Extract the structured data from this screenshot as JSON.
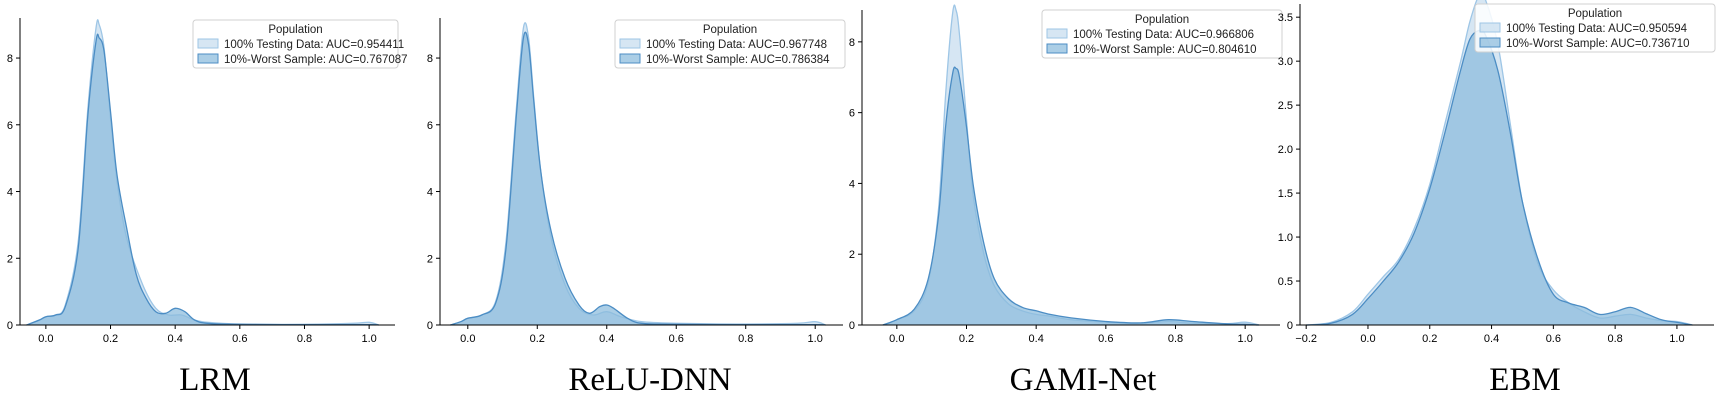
{
  "chart_data": [
    {
      "type": "area",
      "model_label": "LRM",
      "xlim": [
        -0.08,
        1.08
      ],
      "ylim": [
        0,
        9.2
      ],
      "xticks": [
        0.0,
        0.2,
        0.4,
        0.6,
        0.8,
        1.0
      ],
      "xtick_labels": [
        "0.0",
        "0.2",
        "0.4",
        "0.6",
        "0.8",
        "1.0"
      ],
      "yticks": [
        0,
        2,
        4,
        6,
        8
      ],
      "ytick_labels": [
        "0",
        "2",
        "4",
        "6",
        "8"
      ],
      "legend": {
        "title": "Population",
        "placement": "top-right"
      },
      "series": [
        {
          "name": "100% Testing Data: AUC=0.954411",
          "x": [
            -0.06,
            -0.02,
            0.0,
            0.03,
            0.06,
            0.1,
            0.13,
            0.155,
            0.165,
            0.18,
            0.2,
            0.22,
            0.25,
            0.3,
            0.34,
            0.38,
            0.42,
            0.46,
            0.5,
            0.6,
            0.8,
            0.95,
            1.0,
            1.03
          ],
          "y": [
            0,
            0.15,
            0.25,
            0.3,
            0.6,
            2.5,
            6.5,
            8.9,
            9.0,
            8.3,
            6.2,
            4.3,
            2.6,
            1.2,
            0.5,
            0.3,
            0.3,
            0.15,
            0.08,
            0.03,
            0.02,
            0.05,
            0.08,
            0
          ]
        },
        {
          "name": "10%-Worst Sample: AUC=0.767087",
          "x": [
            -0.06,
            -0.02,
            0.0,
            0.03,
            0.06,
            0.1,
            0.13,
            0.155,
            0.165,
            0.18,
            0.2,
            0.22,
            0.25,
            0.28,
            0.31,
            0.34,
            0.37,
            0.4,
            0.43,
            0.46,
            0.5,
            0.6,
            0.8,
            1.0,
            1.03
          ],
          "y": [
            0,
            0.15,
            0.25,
            0.3,
            0.55,
            2.3,
            6.3,
            8.5,
            8.6,
            8.2,
            6.4,
            4.5,
            2.9,
            1.5,
            0.8,
            0.4,
            0.35,
            0.5,
            0.4,
            0.15,
            0.05,
            0.02,
            0.01,
            0.01,
            0
          ]
        }
      ]
    },
    {
      "type": "area",
      "model_label": "ReLU-DNN",
      "xlim": [
        -0.08,
        1.08
      ],
      "ylim": [
        0,
        9.2
      ],
      "xticks": [
        0.0,
        0.2,
        0.4,
        0.6,
        0.8,
        1.0
      ],
      "xtick_labels": [
        "0.0",
        "0.2",
        "0.4",
        "0.6",
        "0.8",
        "1.0"
      ],
      "yticks": [
        0,
        2,
        4,
        6,
        8
      ],
      "ytick_labels": [
        "0",
        "2",
        "4",
        "6",
        "8"
      ],
      "legend": {
        "title": "Population",
        "placement": "top-right"
      },
      "series": [
        {
          "name": "100% Testing Data: AUC=0.967748",
          "x": [
            -0.05,
            -0.02,
            0.0,
            0.04,
            0.08,
            0.11,
            0.14,
            0.16,
            0.175,
            0.19,
            0.21,
            0.24,
            0.28,
            0.32,
            0.36,
            0.4,
            0.44,
            0.5,
            0.6,
            0.8,
            0.95,
            1.0,
            1.03
          ],
          "y": [
            0,
            0.1,
            0.2,
            0.3,
            0.7,
            2.5,
            6.5,
            8.9,
            8.6,
            6.8,
            4.6,
            2.6,
            1.2,
            0.5,
            0.3,
            0.4,
            0.25,
            0.1,
            0.05,
            0.03,
            0.05,
            0.1,
            0
          ]
        },
        {
          "name": "10%-Worst Sample: AUC=0.786384",
          "x": [
            -0.05,
            -0.02,
            0.0,
            0.04,
            0.08,
            0.11,
            0.14,
            0.16,
            0.175,
            0.19,
            0.21,
            0.24,
            0.28,
            0.32,
            0.35,
            0.38,
            0.4,
            0.42,
            0.46,
            0.5,
            0.6,
            0.8,
            1.0,
            1.03
          ],
          "y": [
            0,
            0.1,
            0.2,
            0.3,
            0.65,
            2.3,
            6.3,
            8.6,
            8.4,
            6.7,
            4.6,
            2.8,
            1.4,
            0.6,
            0.35,
            0.55,
            0.6,
            0.5,
            0.2,
            0.05,
            0.02,
            0.01,
            0.01,
            0
          ]
        }
      ]
    },
    {
      "type": "area",
      "model_label": "GAMI-Net",
      "xlim": [
        -0.1,
        1.1
      ],
      "ylim": [
        0,
        8.9
      ],
      "xticks": [
        0.0,
        0.2,
        0.4,
        0.6,
        0.8,
        1.0
      ],
      "xtick_labels": [
        "0.0",
        "0.2",
        "0.4",
        "0.6",
        "0.8",
        "1.0"
      ],
      "yticks": [
        0,
        2,
        4,
        6,
        8
      ],
      "ytick_labels": [
        "0",
        "2",
        "4",
        "6",
        "8"
      ],
      "legend": {
        "title": "Population",
        "placement": "top-right"
      },
      "series": [
        {
          "name": "100% Testing Data: AUC=0.966806",
          "x": [
            -0.04,
            0.0,
            0.05,
            0.09,
            0.12,
            0.14,
            0.16,
            0.17,
            0.18,
            0.2,
            0.22,
            0.25,
            0.28,
            0.32,
            0.36,
            0.4,
            0.44,
            0.5,
            0.6,
            0.7,
            0.78,
            0.85,
            0.95,
            1.0,
            1.04
          ],
          "y": [
            0,
            0.15,
            0.4,
            1.2,
            3.3,
            6.5,
            8.8,
            8.9,
            8.2,
            5.8,
            3.6,
            2.0,
            1.1,
            0.6,
            0.4,
            0.3,
            0.25,
            0.15,
            0.08,
            0.05,
            0.1,
            0.05,
            0.04,
            0.08,
            0
          ]
        },
        {
          "name": "10%-Worst Sample: AUC=0.804610",
          "x": [
            -0.04,
            0.0,
            0.05,
            0.09,
            0.12,
            0.14,
            0.16,
            0.17,
            0.18,
            0.2,
            0.22,
            0.25,
            0.28,
            0.32,
            0.36,
            0.4,
            0.44,
            0.5,
            0.6,
            0.7,
            0.78,
            0.85,
            0.95,
            1.0,
            1.04
          ],
          "y": [
            0,
            0.15,
            0.45,
            1.3,
            3.1,
            5.6,
            7.1,
            7.25,
            7.0,
            5.6,
            3.9,
            2.3,
            1.3,
            0.75,
            0.5,
            0.4,
            0.3,
            0.2,
            0.1,
            0.06,
            0.15,
            0.1,
            0.03,
            0.02,
            0
          ]
        }
      ]
    },
    {
      "type": "area",
      "model_label": "EBM",
      "xlim": [
        -0.22,
        1.12
      ],
      "ylim": [
        0,
        3.65
      ],
      "xticks": [
        -0.2,
        0.0,
        0.2,
        0.4,
        0.6,
        0.8,
        1.0
      ],
      "xtick_labels": [
        "−0.2",
        "0.0",
        "0.2",
        "0.4",
        "0.6",
        "0.8",
        "1.0"
      ],
      "yticks": [
        0,
        0.5,
        1.0,
        1.5,
        2.0,
        2.5,
        3.0,
        3.5
      ],
      "ytick_labels": [
        "0",
        "0.5",
        "1.0",
        "1.5",
        "2.0",
        "2.5",
        "3.0",
        "3.5"
      ],
      "legend": {
        "title": "Population",
        "placement": "top-right"
      },
      "series": [
        {
          "name": "100% Testing Data: AUC=0.950594",
          "x": [
            -0.2,
            -0.12,
            -0.05,
            0.0,
            0.05,
            0.1,
            0.15,
            0.2,
            0.25,
            0.3,
            0.33,
            0.36,
            0.38,
            0.42,
            0.46,
            0.5,
            0.55,
            0.6,
            0.65,
            0.7,
            0.75,
            0.8,
            0.85,
            0.9,
            0.95,
            1.0,
            1.05
          ],
          "y": [
            0,
            0.03,
            0.15,
            0.35,
            0.55,
            0.75,
            1.1,
            1.6,
            2.3,
            3.0,
            3.45,
            3.75,
            3.7,
            3.2,
            2.3,
            1.4,
            0.7,
            0.4,
            0.25,
            0.15,
            0.08,
            0.1,
            0.12,
            0.08,
            0.05,
            0.04,
            0
          ]
        },
        {
          "name": "10%-Worst Sample: AUC=0.736710",
          "x": [
            -0.2,
            -0.12,
            -0.05,
            0.0,
            0.05,
            0.1,
            0.15,
            0.2,
            0.25,
            0.3,
            0.33,
            0.36,
            0.38,
            0.42,
            0.46,
            0.5,
            0.55,
            0.6,
            0.65,
            0.7,
            0.75,
            0.8,
            0.85,
            0.9,
            0.95,
            1.0,
            1.05
          ],
          "y": [
            0,
            0.02,
            0.12,
            0.3,
            0.5,
            0.72,
            1.05,
            1.55,
            2.2,
            2.9,
            3.25,
            3.35,
            3.3,
            2.9,
            2.2,
            1.4,
            0.75,
            0.35,
            0.25,
            0.2,
            0.12,
            0.15,
            0.2,
            0.13,
            0.06,
            0.03,
            0
          ]
        }
      ]
    }
  ],
  "colors": {
    "series_light": "#cfe2f1",
    "series_light_edge": "#9ec6e6",
    "series_dark": "#8bbbdd",
    "series_dark_edge": "#4c8dc4"
  }
}
